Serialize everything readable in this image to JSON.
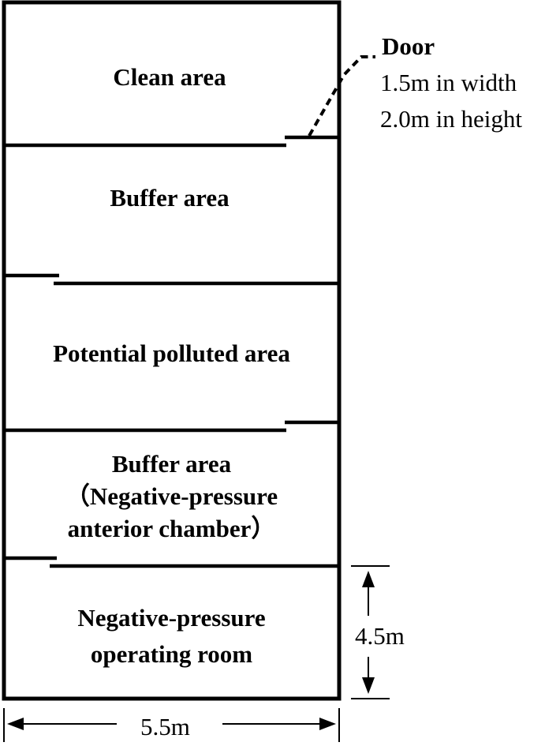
{
  "rooms": [
    {
      "lines": [
        "Clean area"
      ]
    },
    {
      "lines": [
        "Buffer area"
      ]
    },
    {
      "lines": [
        "Potential polluted area"
      ]
    },
    {
      "lines": [
        "Buffer area",
        "（Negative-pressure",
        "anterior chamber）"
      ]
    },
    {
      "lines": [
        "Negative-pressure",
        "operating room"
      ]
    }
  ],
  "door": {
    "title": "Door",
    "width": "1.5m in width",
    "height": "2.0m in height"
  },
  "dimensions": {
    "width": "5.5m",
    "height": "4.5m"
  }
}
